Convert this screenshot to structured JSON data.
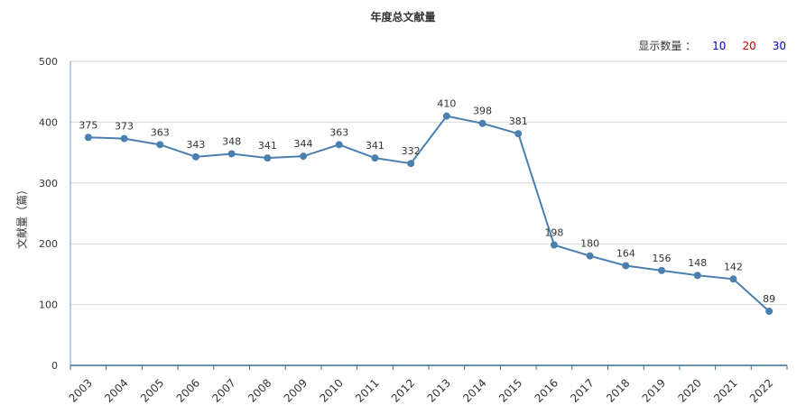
{
  "header": {
    "count_label": "显示数量 ：",
    "count_options": [
      "10",
      "20",
      "30"
    ]
  },
  "chart_data": {
    "type": "line",
    "title": "年度总文献量",
    "xlabel": "",
    "ylabel": "文献量（篇）",
    "categories": [
      "2003",
      "2004",
      "2005",
      "2006",
      "2007",
      "2008",
      "2009",
      "2010",
      "2011",
      "2012",
      "2013",
      "2014",
      "2015",
      "2016",
      "2017",
      "2018",
      "2019",
      "2020",
      "2021",
      "2022"
    ],
    "series": [
      {
        "values": [
          375,
          373,
          363,
          343,
          348,
          341,
          344,
          363,
          341,
          332,
          410,
          398,
          381,
          198,
          180,
          164,
          156,
          148,
          142,
          89
        ]
      }
    ],
    "yticks": [
      0,
      100,
      200,
      300,
      400,
      500
    ],
    "ylim": [
      0,
      500
    ],
    "grid": true,
    "line_color": "#4a7fb0"
  }
}
